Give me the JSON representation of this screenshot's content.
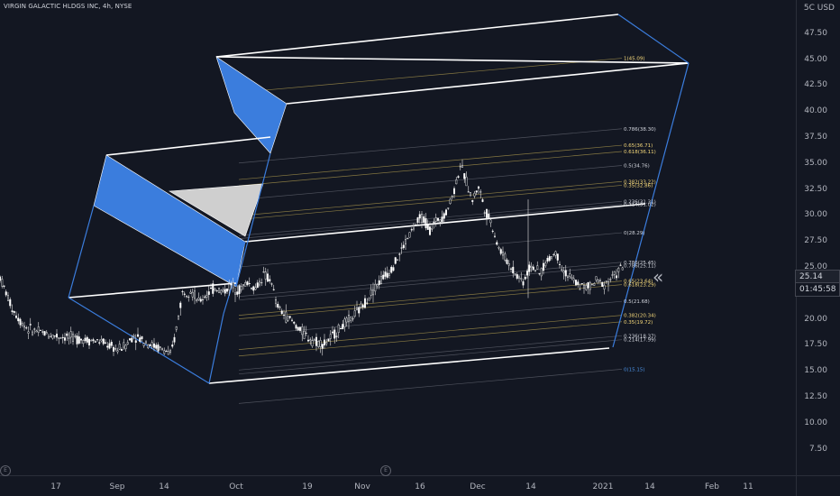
{
  "header": {
    "symbol_title": "VIRGIN GALACTIC HLDGS INC, 4h, NYSE"
  },
  "price_axis": {
    "currency": "5C USD",
    "ticks": [
      "47.50",
      "45.00",
      "42.50",
      "40.00",
      "37.50",
      "35.00",
      "32.50",
      "30.00",
      "27.50",
      "25.00",
      "22.50",
      "20.00",
      "17.50",
      "15.00",
      "12.50",
      "10.00",
      "7.50"
    ]
  },
  "time_axis": {
    "ticks": [
      "17",
      "Sep",
      "14",
      "Oct",
      "19",
      "Nov",
      "16",
      "Dec",
      "14",
      "2021",
      "14",
      "Feb",
      "11"
    ]
  },
  "last_price": {
    "value": "25.14",
    "countdown": "01:45:58"
  },
  "earnings_markers": [
    "E",
    "E"
  ],
  "collapse_button": "«",
  "chart_data": {
    "type": "candlestick",
    "title": "VIRGIN GALACTIC HLDGS INC, 4h, NYSE",
    "ylim": [
      5.2,
      50.0
    ],
    "series_color_up": "#ffffff",
    "series_color_down": "#ffffff",
    "price_path": [
      [
        0,
        24.0
      ],
      [
        3,
        22.5
      ],
      [
        6,
        21.0
      ],
      [
        10,
        19.8
      ],
      [
        14,
        19.0
      ],
      [
        18,
        18.8
      ],
      [
        22,
        18.6
      ],
      [
        26,
        18.4
      ],
      [
        30,
        18.3
      ],
      [
        34,
        18.2
      ],
      [
        38,
        18.1
      ],
      [
        42,
        18.0
      ],
      [
        46,
        17.9
      ],
      [
        50,
        17.8
      ],
      [
        54,
        17.4
      ],
      [
        58,
        17.0
      ],
      [
        62,
        17.5
      ],
      [
        66,
        18.4
      ],
      [
        70,
        18.0
      ],
      [
        74,
        17.6
      ],
      [
        78,
        17.2
      ],
      [
        82,
        16.9
      ],
      [
        84,
        16.4
      ],
      [
        86,
        18.0
      ],
      [
        90,
        22.5
      ],
      [
        94,
        22.8
      ],
      [
        98,
        21.6
      ],
      [
        102,
        22.4
      ],
      [
        106,
        23.0
      ],
      [
        110,
        22.6
      ],
      [
        114,
        23.2
      ],
      [
        118,
        22.8
      ],
      [
        122,
        23.5
      ],
      [
        126,
        22.9
      ],
      [
        130,
        24.2
      ],
      [
        134,
        23.6
      ],
      [
        136,
        21.5
      ],
      [
        140,
        20.4
      ],
      [
        144,
        19.8
      ],
      [
        148,
        18.9
      ],
      [
        152,
        18.2
      ],
      [
        156,
        17.8
      ],
      [
        160,
        17.6
      ],
      [
        164,
        18.3
      ],
      [
        168,
        19.2
      ],
      [
        172,
        19.8
      ],
      [
        176,
        20.6
      ],
      [
        180,
        21.6
      ],
      [
        184,
        22.8
      ],
      [
        188,
        23.8
      ],
      [
        192,
        24.6
      ],
      [
        196,
        25.8
      ],
      [
        200,
        27.4
      ],
      [
        204,
        28.8
      ],
      [
        208,
        29.8
      ],
      [
        212,
        28.6
      ],
      [
        216,
        29.6
      ],
      [
        220,
        30.2
      ],
      [
        224,
        32.4
      ],
      [
        227,
        34.8
      ],
      [
        230,
        33.2
      ],
      [
        233,
        31.4
      ],
      [
        236,
        32.8
      ],
      [
        239,
        30.6
      ],
      [
        242,
        29.4
      ],
      [
        246,
        26.8
      ],
      [
        250,
        25.6
      ],
      [
        254,
        24.4
      ],
      [
        258,
        23.6
      ],
      [
        262,
        25.2
      ],
      [
        266,
        24.3
      ],
      [
        270,
        25.6
      ],
      [
        274,
        26.4
      ],
      [
        278,
        24.6
      ],
      [
        282,
        23.8
      ],
      [
        286,
        23.2
      ],
      [
        290,
        23.0
      ],
      [
        294,
        23.6
      ],
      [
        298,
        23.4
      ],
      [
        302,
        24.0
      ],
      [
        306,
        24.8
      ],
      [
        308,
        25.14
      ]
    ],
    "price_path_axis": "x = bar index (4h bars, Aug to early Jan), y = price in USD",
    "channels": [
      {
        "name": "pitchfan-channel",
        "color": "#ffffff"
      }
    ],
    "fib_levels": [
      {
        "label": "1(45.09)",
        "value": 45.09,
        "color": "#f5d87a"
      },
      {
        "label": "0.786(38.30)",
        "value": 38.3,
        "color": "#d1d4dc"
      },
      {
        "label": "0.65(36.71)",
        "value": 36.71,
        "color": "#f5d87a"
      },
      {
        "label": "0.618(36.11)",
        "value": 36.11,
        "color": "#f5d87a"
      },
      {
        "label": "0.5(34.76)",
        "value": 34.76,
        "color": "#d1d4dc"
      },
      {
        "label": "0.382(33.22)",
        "value": 33.22,
        "color": "#f5d87a"
      },
      {
        "label": "0.35(32.86)",
        "value": 32.86,
        "color": "#f5d87a"
      },
      {
        "label": "0.236(31.31)",
        "value": 31.31,
        "color": "#d1d4dc"
      },
      {
        "label": "0.214(31.02)",
        "value": 31.02,
        "color": "#d1d4dc"
      },
      {
        "label": "0(28.29)",
        "value": 28.29,
        "color": "#d1d4dc"
      },
      {
        "label": "0.786(25.45)",
        "value": 25.45,
        "color": "#d1d4dc"
      },
      {
        "label": "0.786(25.11)",
        "value": 25.11,
        "color": "#d1d4dc"
      },
      {
        "label": "0.65(23.64)",
        "value": 23.64,
        "color": "#f5d87a"
      },
      {
        "label": "0.618(23.29)",
        "value": 23.29,
        "color": "#f5d87a"
      },
      {
        "label": "0.5(21.68)",
        "value": 21.68,
        "color": "#d1d4dc"
      },
      {
        "label": "0.382(20.34)",
        "value": 20.34,
        "color": "#f5d87a"
      },
      {
        "label": "0.35(19.72)",
        "value": 19.72,
        "color": "#f5d87a"
      },
      {
        "label": "0.236(18.37)",
        "value": 18.37,
        "color": "#d1d4dc"
      },
      {
        "label": "0.214(17.99)",
        "value": 17.99,
        "color": "#d1d4dc"
      },
      {
        "label": "0(15.15)",
        "value": 15.15,
        "color": "#4a90e2"
      }
    ],
    "colors": {
      "background": "#131722",
      "channel_fill": "#3b7ddd",
      "triangle_fill": "#cfcfcf",
      "fib_line": "#5d606b",
      "fib_gold": "#a3914a"
    },
    "grid": false
  }
}
